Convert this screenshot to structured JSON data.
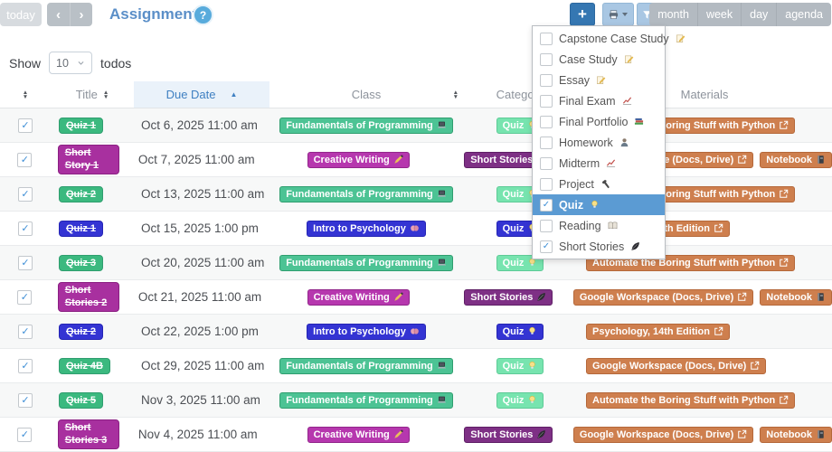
{
  "toolbar": {
    "today": "today",
    "title": "Assignments",
    "views": [
      "month",
      "week",
      "day",
      "agenda"
    ]
  },
  "show_control": {
    "label": "Show",
    "value": "10",
    "suffix": "todos"
  },
  "filter_menu": {
    "items": [
      {
        "label": "Capstone Case Study",
        "icon": "memo",
        "checked": false
      },
      {
        "label": "Case Study",
        "icon": "memo",
        "checked": false
      },
      {
        "label": "Essay",
        "icon": "memo",
        "checked": false
      },
      {
        "label": "Final Exam",
        "icon": "chart",
        "checked": false
      },
      {
        "label": "Final Portfolio",
        "icon": "books",
        "checked": false
      },
      {
        "label": "Homework",
        "icon": "person",
        "checked": false
      },
      {
        "label": "Midterm",
        "icon": "chart",
        "checked": false
      },
      {
        "label": "Project",
        "icon": "hammer",
        "checked": false
      },
      {
        "label": "Quiz",
        "icon": "lightbulb",
        "checked": true,
        "highlighted": true
      },
      {
        "label": "Reading",
        "icon": "book",
        "checked": false
      },
      {
        "label": "Short Stories",
        "icon": "feather",
        "checked": true
      }
    ]
  },
  "table": {
    "headers": {
      "title": "Title",
      "due": "Due Date",
      "class": "Class",
      "category": "Category",
      "materials": "Materials"
    },
    "sorted_by": "Due Date",
    "sort_direction": "ascending",
    "rows": [
      {
        "checked": true,
        "title": "Quiz 1",
        "title_color": "green",
        "due": "Oct 6, 2025 11:00 am",
        "class": {
          "label": "Fundamentals of Programming",
          "icon": "laptop",
          "color": "classgreen"
        },
        "category": {
          "label": "Quiz",
          "icon": "lightbulb",
          "color": "mint"
        },
        "materials": [
          {
            "label": "Automate the Boring Stuff with Python",
            "icon": "external-link"
          }
        ]
      },
      {
        "checked": true,
        "title": "Short Story 1",
        "title_color": "purple",
        "due": "Oct 7, 2025 11:00 am",
        "class": {
          "label": "Creative Writing",
          "icon": "writing-hand",
          "color": "magenta"
        },
        "category": {
          "label": "Short Stories",
          "icon": "feather",
          "color": "darkpurple"
        },
        "materials": [
          {
            "label": "Google Workspace (Docs, Drive)",
            "icon": "external-link"
          },
          {
            "label": "Notebook",
            "icon": "notebook"
          }
        ]
      },
      {
        "checked": true,
        "title": "Quiz 2",
        "title_color": "green",
        "due": "Oct 13, 2025 11:00 am",
        "class": {
          "label": "Fundamentals of Programming",
          "icon": "laptop",
          "color": "classgreen"
        },
        "category": {
          "label": "Quiz",
          "icon": "lightbulb",
          "color": "mint"
        },
        "materials": [
          {
            "label": "Automate the Boring Stuff with Python",
            "icon": "external-link"
          }
        ]
      },
      {
        "checked": true,
        "title": "Quiz 1",
        "title_color": "blue",
        "due": "Oct 15, 2025 1:00 pm",
        "class": {
          "label": "Intro to Psychology",
          "icon": "brain",
          "color": "blue"
        },
        "category": {
          "label": "Quiz",
          "icon": "lightbulb",
          "color": "blue"
        },
        "materials": [
          {
            "label": "Psychology, 14th Edition",
            "icon": "external-link"
          }
        ]
      },
      {
        "checked": true,
        "title": "Quiz 3",
        "title_color": "green",
        "due": "Oct 20, 2025 11:00 am",
        "class": {
          "label": "Fundamentals of Programming",
          "icon": "laptop",
          "color": "classgreen"
        },
        "category": {
          "label": "Quiz",
          "icon": "lightbulb",
          "color": "mint"
        },
        "materials": [
          {
            "label": "Automate the Boring Stuff with Python",
            "icon": "external-link"
          }
        ]
      },
      {
        "checked": true,
        "title": "Short Stories 2",
        "title_color": "purple",
        "due": "Oct 21, 2025 11:00 am",
        "class": {
          "label": "Creative Writing",
          "icon": "writing-hand",
          "color": "magenta"
        },
        "category": {
          "label": "Short Stories",
          "icon": "feather",
          "color": "darkpurple"
        },
        "materials": [
          {
            "label": "Google Workspace (Docs, Drive)",
            "icon": "external-link"
          },
          {
            "label": "Notebook",
            "icon": "notebook"
          }
        ]
      },
      {
        "checked": true,
        "title": "Quiz 2",
        "title_color": "blue",
        "due": "Oct 22, 2025 1:00 pm",
        "class": {
          "label": "Intro to Psychology",
          "icon": "brain",
          "color": "blue"
        },
        "category": {
          "label": "Quiz",
          "icon": "lightbulb",
          "color": "blue"
        },
        "materials": [
          {
            "label": "Psychology, 14th Edition",
            "icon": "external-link"
          }
        ]
      },
      {
        "checked": true,
        "title": "Quiz 4B",
        "title_color": "green",
        "due": "Oct 29, 2025 11:00 am",
        "class": {
          "label": "Fundamentals of Programming",
          "icon": "laptop",
          "color": "classgreen"
        },
        "category": {
          "label": "Quiz",
          "icon": "lightbulb",
          "color": "mint"
        },
        "materials": [
          {
            "label": "Google Workspace (Docs, Drive)",
            "icon": "external-link"
          }
        ]
      },
      {
        "checked": true,
        "title": "Quiz 5",
        "title_color": "green",
        "due": "Nov 3, 2025 11:00 am",
        "class": {
          "label": "Fundamentals of Programming",
          "icon": "laptop",
          "color": "classgreen"
        },
        "category": {
          "label": "Quiz",
          "icon": "lightbulb",
          "color": "mint"
        },
        "materials": [
          {
            "label": "Automate the Boring Stuff with Python",
            "icon": "external-link"
          }
        ]
      },
      {
        "checked": true,
        "title": "Short Stories 3",
        "title_color": "purple",
        "due": "Nov 4, 2025 11:00 am",
        "class": {
          "label": "Creative Writing",
          "icon": "writing-hand",
          "color": "magenta"
        },
        "category": {
          "label": "Short Stories",
          "icon": "feather",
          "color": "darkpurple"
        },
        "materials": [
          {
            "label": "Google Workspace (Docs, Drive)",
            "icon": "external-link"
          },
          {
            "label": "Notebook",
            "icon": "notebook"
          }
        ]
      }
    ]
  },
  "colors": {
    "accent_blue": "#3577b2",
    "light_blue_button": "#a9c7e3",
    "highlight_blue": "#5b9bd3",
    "header_active_blue": "#3f80c2",
    "title_blue": "#5b8fc8",
    "green": "#3bb97f",
    "class_green": "#4cc394",
    "mint": "#77e4af",
    "blue": "#3434d3",
    "magenta": "#b637ae",
    "purple": "#a8309f",
    "dark_purple": "#7e3085",
    "orange": "#ce7f4e"
  }
}
